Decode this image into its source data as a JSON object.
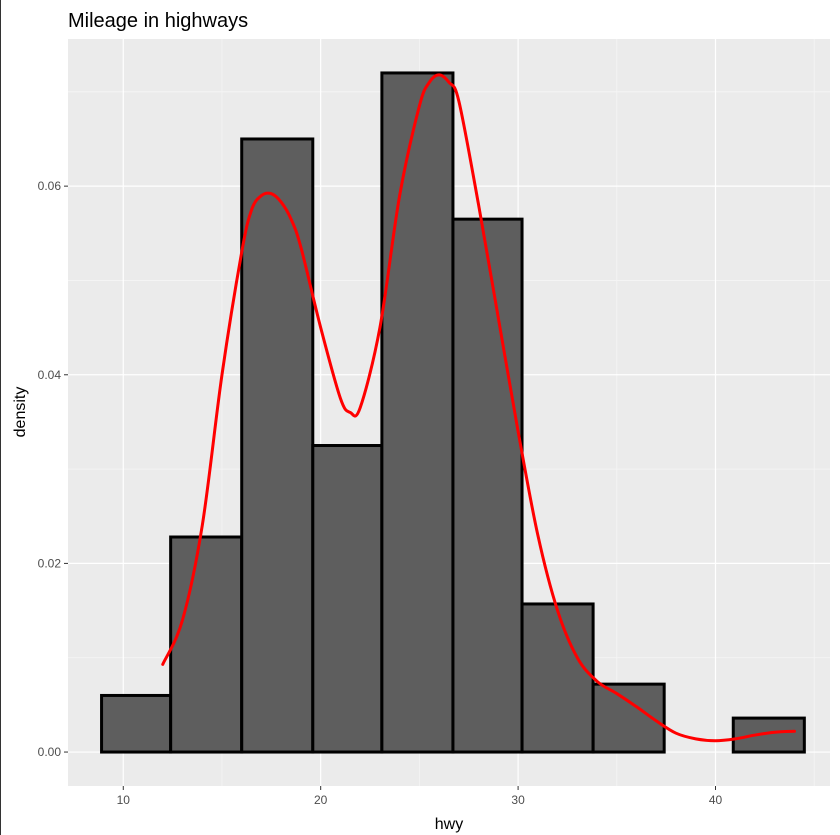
{
  "chart_data": {
    "type": "bar",
    "title": "Mileage in highways",
    "xlabel": "hwy",
    "ylabel": "density",
    "xlim": [
      7.2,
      45.8
    ],
    "ylim": [
      -0.0036,
      0.0756
    ],
    "grid": true,
    "x_ticks": [
      {
        "value": 10,
        "label": "10"
      },
      {
        "value": 20,
        "label": "20"
      },
      {
        "value": 30,
        "label": "30"
      },
      {
        "value": 40,
        "label": "40"
      }
    ],
    "y_ticks": [
      {
        "value": 0.0,
        "label": "0.00"
      },
      {
        "value": 0.02,
        "label": "0.02"
      },
      {
        "value": 0.04,
        "label": "0.04"
      },
      {
        "value": 0.06,
        "label": "0.06"
      }
    ],
    "bins": [
      {
        "x0": 8.9,
        "x1": 12.4,
        "density": 0.006
      },
      {
        "x0": 12.4,
        "x1": 16.0,
        "density": 0.0228
      },
      {
        "x0": 16.0,
        "x1": 19.6,
        "density": 0.065
      },
      {
        "x0": 19.6,
        "x1": 23.1,
        "density": 0.0325
      },
      {
        "x0": 23.1,
        "x1": 26.7,
        "density": 0.072
      },
      {
        "x0": 26.7,
        "x1": 30.2,
        "density": 0.0565
      },
      {
        "x0": 30.2,
        "x1": 33.8,
        "density": 0.0157
      },
      {
        "x0": 33.8,
        "x1": 37.4,
        "density": 0.0072
      },
      {
        "x0": 37.4,
        "x1": 40.9,
        "density": 0.0
      },
      {
        "x0": 40.9,
        "x1": 44.5,
        "density": 0.0036
      }
    ],
    "density_curve": {
      "color": "#ff0000",
      "x": [
        12.0,
        13.0,
        14.0,
        15.0,
        16.0,
        16.5,
        17.0,
        17.5,
        18.0,
        18.5,
        19.0,
        20.0,
        21.0,
        21.5,
        22.0,
        23.0,
        24.0,
        25.0,
        25.5,
        26.0,
        26.5,
        27.0,
        28.0,
        29.0,
        30.0,
        31.0,
        32.0,
        33.0,
        34.0,
        35.0,
        36.0,
        37.0,
        38.0,
        39.0,
        40.0,
        41.0,
        42.0,
        43.0,
        44.0
      ],
      "y": [
        0.0093,
        0.014,
        0.024,
        0.04,
        0.053,
        0.0575,
        0.059,
        0.0592,
        0.0583,
        0.0565,
        0.0535,
        0.045,
        0.0375,
        0.036,
        0.0365,
        0.045,
        0.059,
        0.0685,
        0.071,
        0.0718,
        0.071,
        0.069,
        0.058,
        0.046,
        0.034,
        0.023,
        0.015,
        0.01,
        0.0075,
        0.0062,
        0.0048,
        0.0033,
        0.002,
        0.0014,
        0.0012,
        0.0014,
        0.0018,
        0.0021,
        0.0022
      ]
    },
    "bar_fill": "#595959",
    "bar_stroke": "#000000",
    "panel_background": "#ebebeb"
  }
}
